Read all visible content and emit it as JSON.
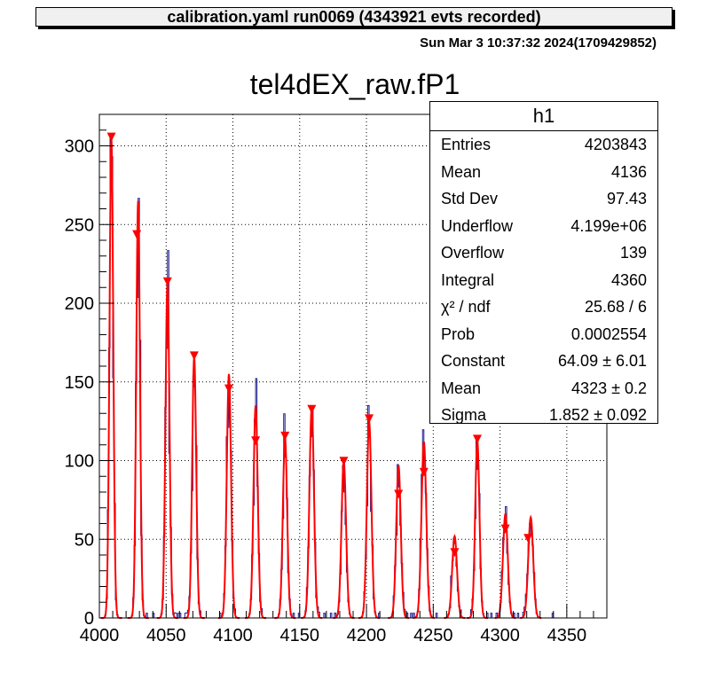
{
  "header": {
    "banner": "calibration.yaml  run0069 (4343921 evts recorded)",
    "datestamp": "Sun Mar  3 10:37:32 2024(1709429852)"
  },
  "colors": {
    "histogram": "#1a1a8c",
    "fit": "#ff0000",
    "markers": "#ff0000",
    "grid": "#000000"
  },
  "stats": {
    "name": "h1",
    "rows": [
      {
        "key": "Entries",
        "value": "4203843"
      },
      {
        "key": "Mean",
        "value": "4136"
      },
      {
        "key": "Std Dev",
        "value": "97.43"
      },
      {
        "key": "Underflow",
        "value": "4.199e+06"
      },
      {
        "key": "Overflow",
        "value": "139"
      },
      {
        "key": "Integral",
        "value": "4360"
      },
      {
        "key": "χ² / ndf",
        "value": "25.68 / 6"
      },
      {
        "key": "Prob",
        "value": "0.0002554"
      },
      {
        "key": "Constant",
        "value": "64.09 ± 6.01"
      },
      {
        "key": "Mean",
        "value": "4323 ± 0.2"
      },
      {
        "key": "Sigma",
        "value": "1.852 ± 0.092"
      }
    ]
  },
  "chart_data": {
    "type": "histogram",
    "title": "tel4dEX_raw.fP1",
    "xlabel": "",
    "ylabel": "",
    "xlim": [
      4000,
      4380
    ],
    "ylim": [
      0,
      320
    ],
    "xticks": [
      4000,
      4050,
      4100,
      4150,
      4200,
      4250,
      4300,
      4350
    ],
    "yticks": [
      0,
      50,
      100,
      150,
      200,
      250,
      300
    ],
    "grid": true,
    "legend": "stats box top-right",
    "peaks": [
      {
        "x": 4009,
        "height": 305,
        "sigma": 1.4
      },
      {
        "x": 4029,
        "height": 265,
        "sigma": 1.4
      },
      {
        "x": 4051,
        "height": 213,
        "sigma": 1.5
      },
      {
        "x": 4071,
        "height": 166,
        "sigma": 1.5
      },
      {
        "x": 4097,
        "height": 155,
        "sigma": 1.6
      },
      {
        "x": 4117,
        "height": 135,
        "sigma": 1.6
      },
      {
        "x": 4139,
        "height": 115,
        "sigma": 1.6
      },
      {
        "x": 4159,
        "height": 134,
        "sigma": 1.7
      },
      {
        "x": 4183,
        "height": 100,
        "sigma": 1.7
      },
      {
        "x": 4202,
        "height": 125,
        "sigma": 1.7
      },
      {
        "x": 4224,
        "height": 97,
        "sigma": 1.7
      },
      {
        "x": 4243,
        "height": 112,
        "sigma": 1.8
      },
      {
        "x": 4266,
        "height": 52,
        "sigma": 1.8
      },
      {
        "x": 4283,
        "height": 113,
        "sigma": 1.6
      },
      {
        "x": 4304,
        "height": 66,
        "sigma": 1.8
      },
      {
        "x": 4323,
        "height": 64,
        "sigma": 1.852
      }
    ],
    "markers": [
      {
        "x": 4009,
        "y": 305
      },
      {
        "x": 4028,
        "y": 243
      },
      {
        "x": 4051,
        "y": 213
      },
      {
        "x": 4071,
        "y": 166
      },
      {
        "x": 4097,
        "y": 145
      },
      {
        "x": 4117,
        "y": 112
      },
      {
        "x": 4139,
        "y": 115
      },
      {
        "x": 4159,
        "y": 132
      },
      {
        "x": 4183,
        "y": 99
      },
      {
        "x": 4202,
        "y": 126
      },
      {
        "x": 4224,
        "y": 78
      },
      {
        "x": 4243,
        "y": 92
      },
      {
        "x": 4266,
        "y": 41
      },
      {
        "x": 4283,
        "y": 113
      },
      {
        "x": 4304,
        "y": 56
      },
      {
        "x": 4321,
        "y": 50
      }
    ]
  }
}
